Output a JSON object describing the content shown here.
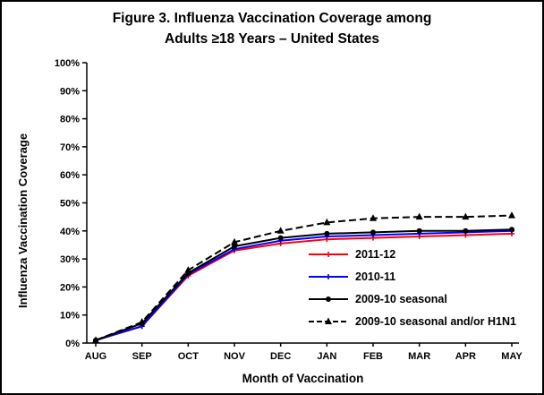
{
  "chart_data": {
    "type": "line",
    "title": "Figure 3. Influenza Vaccination Coverage among Adults ≥18 Years – United States",
    "title_lines": [
      "Figure 3. Influenza Vaccination Coverage among",
      "Adults ≥18 Years – United States"
    ],
    "xlabel": "Month of Vaccination",
    "ylabel": "Influenza Vaccination Coverage",
    "ylim": [
      0,
      100
    ],
    "ytick_step": 10,
    "ytick_labels": [
      "0%",
      "10%",
      "20%",
      "30%",
      "40%",
      "50%",
      "60%",
      "70%",
      "80%",
      "90%",
      "100%"
    ],
    "categories": [
      "AUG",
      "SEP",
      "OCT",
      "NOV",
      "DEC",
      "JAN",
      "FEB",
      "MAR",
      "APR",
      "MAY"
    ],
    "grid": false,
    "legend_position": "inside-lower-right",
    "series": [
      {
        "name": "2011-12",
        "color": "#ff0000",
        "marker": "plus",
        "dash": null,
        "values": [
          1,
          6,
          24,
          33,
          35.5,
          37,
          37.5,
          38,
          38.5,
          39
        ]
      },
      {
        "name": "2010-11",
        "color": "#0000ff",
        "marker": "plus",
        "dash": null,
        "values": [
          1,
          6,
          24.5,
          33.5,
          36.5,
          38,
          38.5,
          39,
          39.5,
          40
        ]
      },
      {
        "name": "2009-10 seasonal",
        "color": "#000000",
        "marker": "circle",
        "dash": null,
        "values": [
          1,
          7,
          25,
          34.5,
          37.5,
          39,
          39.5,
          40,
          40,
          40.5
        ]
      },
      {
        "name": "2009-10 seasonal and/or H1N1",
        "color": "#000000",
        "marker": "triangle",
        "dash": "8 4",
        "values": [
          1,
          7.5,
          26,
          36,
          40,
          43,
          44.5,
          45,
          45,
          45.5
        ]
      }
    ]
  }
}
